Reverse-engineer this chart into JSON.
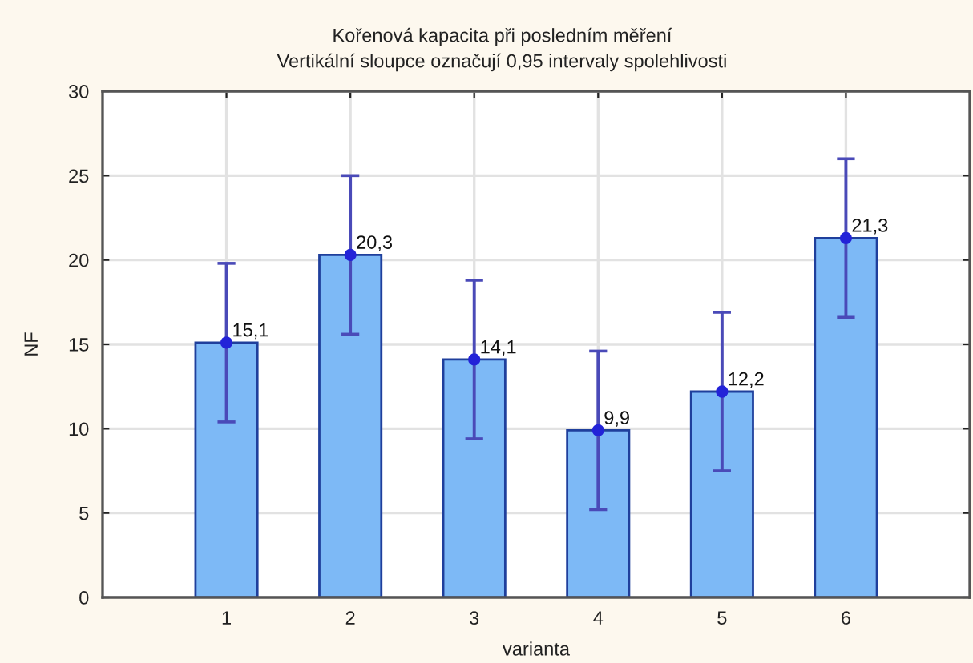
{
  "chart_data": {
    "type": "bar",
    "title": "Kořenová kapacita při posledním měření",
    "subtitle": "Vertikální sloupce označují 0,95 intervaly spolehlivosti",
    "xlabel": "varianta",
    "ylabel": "NF",
    "categories": [
      "1",
      "2",
      "3",
      "4",
      "5",
      "6"
    ],
    "series": [
      {
        "color": "#7db9f6",
        "values": [
          15.1,
          20.3,
          14.1,
          9.9,
          12.2,
          21.3
        ],
        "errors": [
          4.7,
          4.7,
          4.7,
          4.7,
          4.7,
          4.7
        ],
        "value_labels": [
          "15,1",
          "20,3",
          "14,1",
          "9,9",
          "12,2",
          "21,3"
        ]
      },
      {
        "type": "scatter",
        "color": "#2323d8",
        "x": [
          "1",
          "2",
          "3",
          "4",
          "5",
          "6"
        ],
        "values": [
          15.1,
          20.3,
          14.1,
          9.9,
          12.2,
          21.3
        ]
      }
    ],
    "ylim": [
      0,
      30
    ],
    "yticks": [
      0,
      5,
      10,
      15,
      20,
      25,
      30
    ],
    "grid": true,
    "marker": "circle"
  }
}
